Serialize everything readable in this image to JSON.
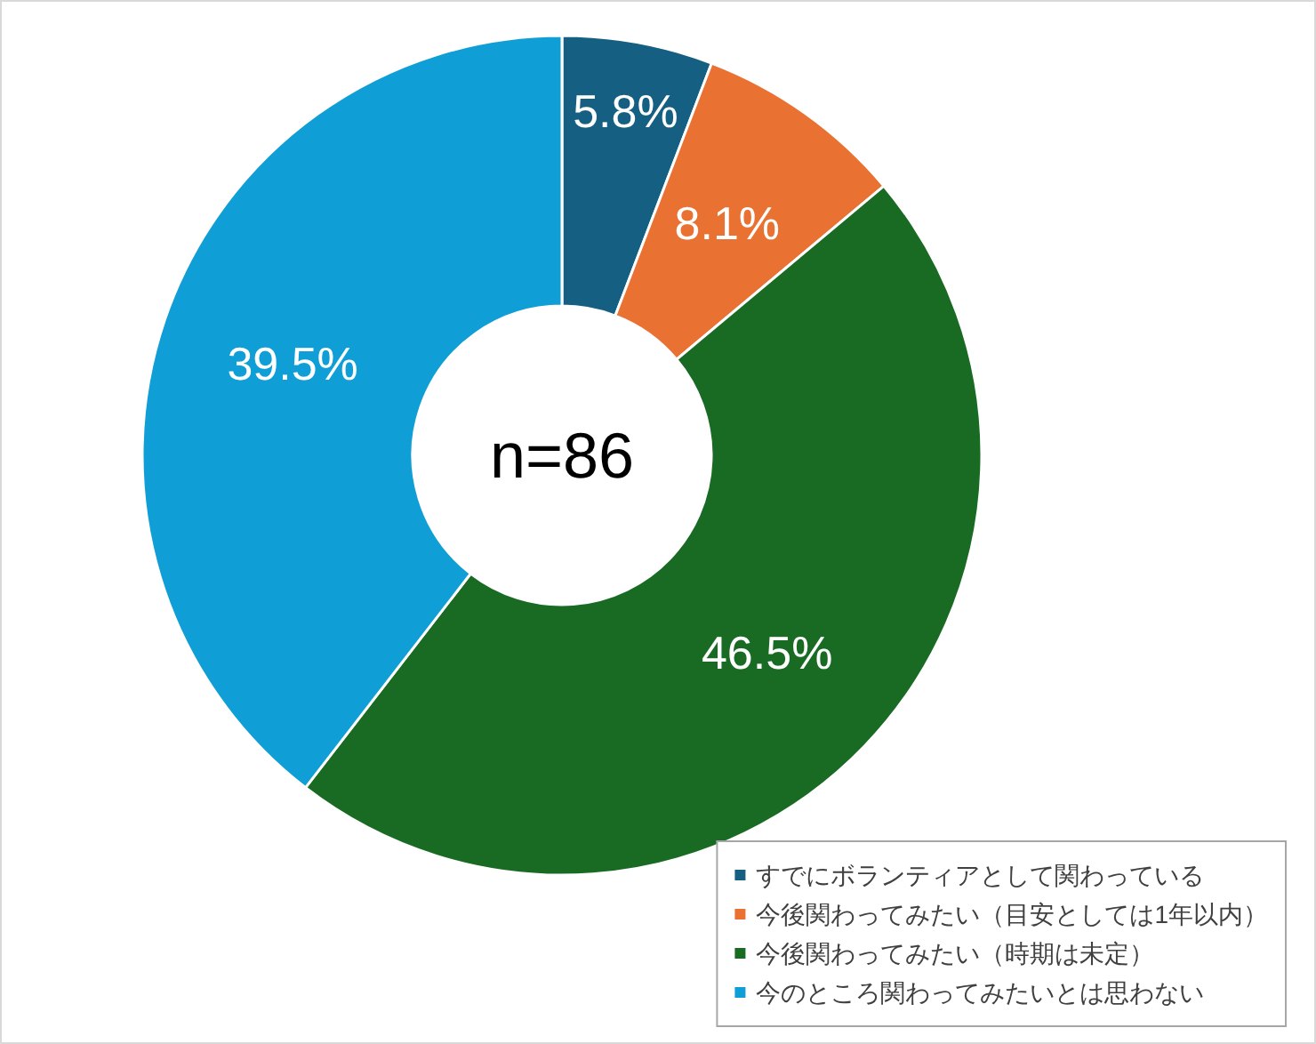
{
  "chart_data": {
    "type": "donut",
    "categories": [
      "すでにボランティアとして関わっている",
      "今後関わってみたい（目安としては1年以内）",
      "今後関わってみたい（時期は未定）",
      "今のところ関わってみたいとは思わない"
    ],
    "values": [
      5.8,
      8.1,
      46.5,
      39.5
    ],
    "colors": [
      "#156082",
      "#e97132",
      "#196b24",
      "#0f9ed5"
    ],
    "value_labels": [
      "5.8%",
      "8.1%",
      "46.5%",
      "39.5%"
    ],
    "annotations": [
      "n=86"
    ],
    "legend": "bottom right"
  }
}
